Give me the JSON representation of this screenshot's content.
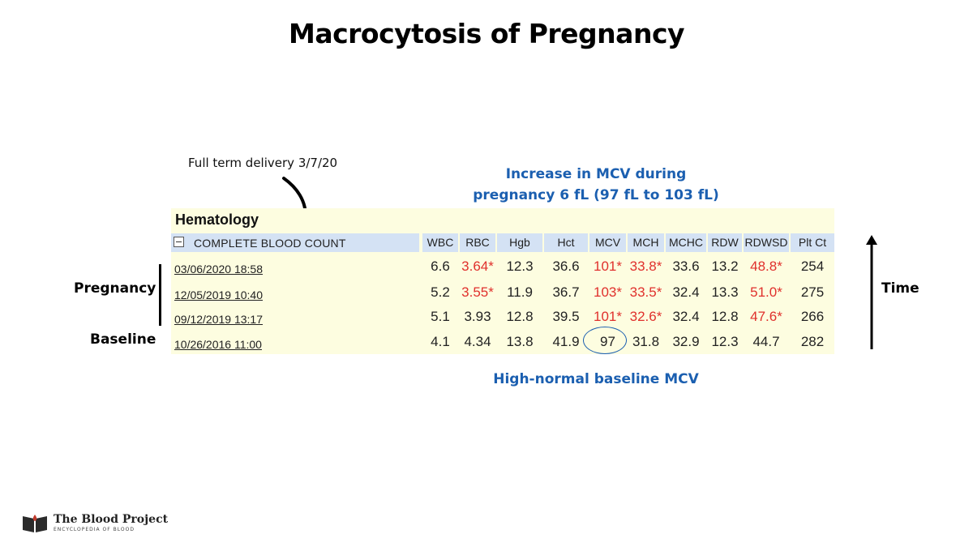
{
  "title": "Macrocytosis of Pregnancy",
  "delivery_note": "Full term delivery 3/7/20",
  "callout_top": [
    "Increase in MCV during",
    "pregnancy 6 fL (97 fL to 103 fL)"
  ],
  "callout_bottom": "High-normal baseline MCV",
  "side_labels": {
    "pregnancy": "Pregnancy",
    "baseline": "Baseline",
    "time": "Time"
  },
  "panel": {
    "heading": "Hematology",
    "section": "COMPLETE BLOOD COUNT",
    "columns": [
      "WBC",
      "RBC",
      "Hgb",
      "Hct",
      "MCV",
      "MCH",
      "MCHC",
      "RDW",
      "RDWSD",
      "Plt Ct"
    ],
    "rows": [
      {
        "date": "03/06/2020 18:58",
        "values": [
          "6.6",
          "3.64*",
          "12.3",
          "36.6",
          "101*",
          "33.8*",
          "33.6",
          "13.2",
          "48.8*",
          "254"
        ],
        "flagged": [
          false,
          true,
          false,
          false,
          true,
          true,
          false,
          false,
          true,
          false
        ]
      },
      {
        "date": "12/05/2019 10:40",
        "values": [
          "5.2",
          "3.55*",
          "11.9",
          "36.7",
          "103*",
          "33.5*",
          "32.4",
          "13.3",
          "51.0*",
          "275"
        ],
        "flagged": [
          false,
          true,
          false,
          false,
          true,
          true,
          false,
          false,
          true,
          false
        ]
      },
      {
        "date": "09/12/2019 13:17",
        "values": [
          "5.1",
          "3.93",
          "12.8",
          "39.5",
          "101*",
          "32.6*",
          "32.4",
          "12.8",
          "47.6*",
          "266"
        ],
        "flagged": [
          false,
          false,
          false,
          false,
          true,
          true,
          false,
          false,
          true,
          false
        ]
      },
      {
        "date": "10/26/2016 11:00",
        "values": [
          "4.1",
          "4.34",
          "13.8",
          "41.9",
          "97",
          "31.8",
          "32.9",
          "12.3",
          "44.7",
          "282"
        ],
        "flagged": [
          false,
          false,
          false,
          false,
          false,
          false,
          false,
          false,
          false,
          false
        ]
      }
    ]
  },
  "colors": {
    "flag": "#e0302c",
    "callout": "#1b5fb0",
    "panel_bg": "#fdfde0",
    "header_bg": "#d4e2f4"
  },
  "logo": {
    "title": "The Blood Project",
    "subtitle": "ENCYCLOPEDIA OF BLOOD",
    "icon": "book-icon"
  }
}
